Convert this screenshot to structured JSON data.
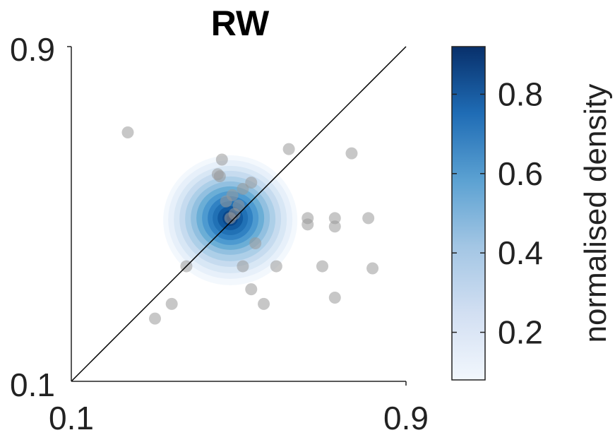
{
  "chart_data": {
    "type": "scatter",
    "title": "RW",
    "xlabel": "",
    "ylabel": "",
    "xlim": [
      0.1,
      0.9
    ],
    "ylim": [
      0.1,
      0.9
    ],
    "x_ticks": [
      "0.1",
      "0.9"
    ],
    "y_ticks": [
      "0.1",
      "0.9"
    ],
    "identity_line": true,
    "grid": false,
    "points": [
      {
        "x": 0.235,
        "y": 0.695
      },
      {
        "x": 0.62,
        "y": 0.655
      },
      {
        "x": 0.77,
        "y": 0.645
      },
      {
        "x": 0.46,
        "y": 0.63
      },
      {
        "x": 0.45,
        "y": 0.595
      },
      {
        "x": 0.455,
        "y": 0.59
      },
      {
        "x": 0.51,
        "y": 0.56
      },
      {
        "x": 0.53,
        "y": 0.575
      },
      {
        "x": 0.485,
        "y": 0.545
      },
      {
        "x": 0.47,
        "y": 0.53
      },
      {
        "x": 0.5,
        "y": 0.52
      },
      {
        "x": 0.49,
        "y": 0.5
      },
      {
        "x": 0.48,
        "y": 0.49
      },
      {
        "x": 0.665,
        "y": 0.49
      },
      {
        "x": 0.665,
        "y": 0.475
      },
      {
        "x": 0.73,
        "y": 0.49
      },
      {
        "x": 0.73,
        "y": 0.47
      },
      {
        "x": 0.81,
        "y": 0.49
      },
      {
        "x": 0.54,
        "y": 0.43
      },
      {
        "x": 0.375,
        "y": 0.375
      },
      {
        "x": 0.51,
        "y": 0.375
      },
      {
        "x": 0.59,
        "y": 0.375
      },
      {
        "x": 0.7,
        "y": 0.375
      },
      {
        "x": 0.82,
        "y": 0.37
      },
      {
        "x": 0.53,
        "y": 0.32
      },
      {
        "x": 0.56,
        "y": 0.285
      },
      {
        "x": 0.73,
        "y": 0.3
      },
      {
        "x": 0.34,
        "y": 0.285
      },
      {
        "x": 0.3,
        "y": 0.25
      }
    ],
    "density_peak": {
      "x": 0.48,
      "y": 0.49
    },
    "colorbar": {
      "label": "normalised density",
      "ticks": [
        "0.2",
        "0.4",
        "0.6",
        "0.8"
      ],
      "tick_values": [
        0.2,
        0.4,
        0.6,
        0.8
      ],
      "range": [
        0.08,
        0.92
      ],
      "color_low": "#f2f7fd",
      "color_high": "#08306b"
    },
    "colors": {
      "points": "#999999",
      "density_high": "#08306b",
      "axis": "#222222"
    }
  }
}
